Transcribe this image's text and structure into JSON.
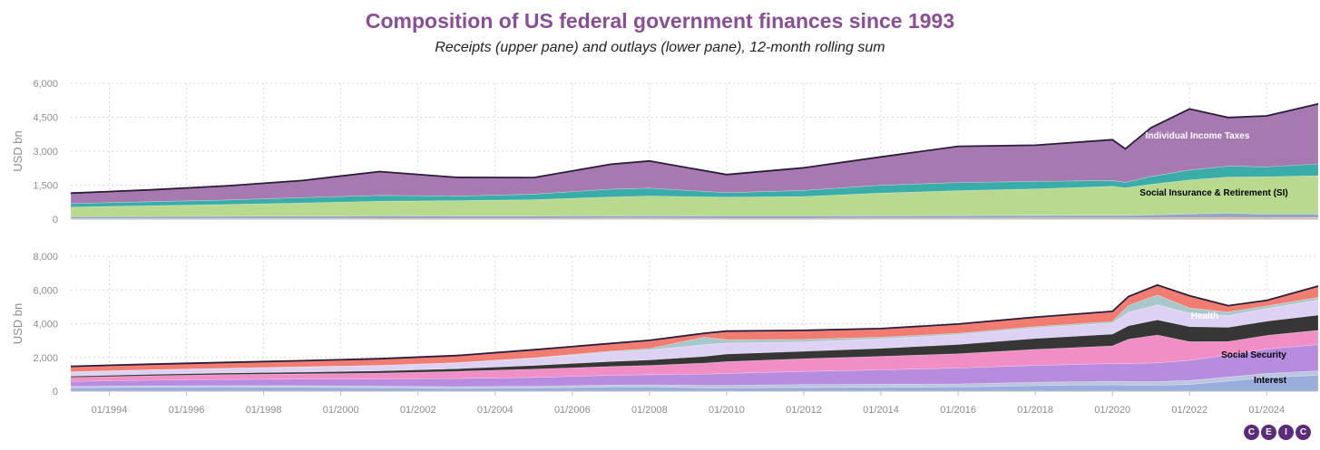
{
  "header": {
    "title": "Composition of US federal government finances since 1993",
    "subtitle": "Receipts (upper pane) and outlays (lower pane), 12-month rolling sum"
  },
  "logo": {
    "letters": [
      "C",
      "E",
      "I",
      "C"
    ]
  },
  "chart_data": [
    {
      "type": "area",
      "stacked": true,
      "ylabel": "USD bn",
      "ylim": [
        0,
        6000
      ],
      "yticks": [
        "0",
        "1,500",
        "3,000",
        "4,500",
        "6,000"
      ],
      "grid": true,
      "x": [
        "01/1993",
        "01/1995",
        "01/1997",
        "01/1999",
        "01/2001",
        "01/2003",
        "01/2005",
        "01/2007",
        "01/2008",
        "01/2010",
        "01/2012",
        "01/2014",
        "01/2016",
        "01/2018",
        "01/2020",
        "05/2020",
        "01/2021",
        "01/2022",
        "01/2023",
        "01/2024",
        "05/2025"
      ],
      "series": [
        {
          "color": "#f4b183",
          "values": [
            30,
            32,
            35,
            38,
            40,
            40,
            40,
            45,
            45,
            40,
            40,
            42,
            45,
            48,
            50,
            50,
            55,
            70,
            80,
            70,
            70
          ]
        },
        {
          "color": "#8fa6c8",
          "values": [
            80,
            85,
            90,
            95,
            100,
            95,
            95,
            100,
            105,
            100,
            100,
            105,
            110,
            115,
            120,
            115,
            130,
            160,
            180,
            150,
            150
          ]
        },
        {
          "color": "#b9d98f",
          "values": [
            420,
            470,
            520,
            580,
            650,
            680,
            720,
            830,
            870,
            830,
            860,
            1000,
            1100,
            1170,
            1280,
            1220,
            1350,
            1500,
            1600,
            1650,
            1700
          ]
        },
        {
          "color": "#3aada8",
          "values": [
            160,
            180,
            200,
            240,
            260,
            200,
            250,
            350,
            350,
            200,
            270,
            350,
            360,
            330,
            260,
            240,
            350,
            440,
            480,
            440,
            520
          ]
        },
        {
          "color": "#a779b1",
          "values": [
            460,
            520,
            620,
            750,
            1050,
            830,
            730,
            1100,
            1200,
            800,
            1000,
            1250,
            1600,
            1600,
            1800,
            1480,
            2150,
            2700,
            2150,
            2250,
            2650
          ]
        }
      ],
      "annotations": [
        {
          "text": "Individual Income Taxes",
          "color": "#ffffff"
        },
        {
          "text": "Social Insurance & Retirement (SI)",
          "color": "#000000"
        }
      ]
    },
    {
      "type": "area",
      "stacked": true,
      "ylabel": "USD bn",
      "ylim": [
        0,
        8000
      ],
      "yticks": [
        "0",
        "2,000",
        "4,000",
        "6,000",
        "8,000"
      ],
      "grid": true,
      "x_ticks": [
        "01/1994",
        "01/1996",
        "01/1998",
        "01/2000",
        "01/2002",
        "01/2004",
        "01/2006",
        "01/2008",
        "01/2010",
        "01/2012",
        "01/2014",
        "01/2016",
        "01/2018",
        "01/2020",
        "01/2022",
        "01/2024"
      ],
      "x": [
        "01/1993",
        "01/1995",
        "01/1997",
        "01/1999",
        "01/2001",
        "01/2003",
        "01/2005",
        "01/2007",
        "01/2008",
        "06/2009",
        "01/2010",
        "01/2012",
        "01/2014",
        "01/2016",
        "01/2018",
        "01/2020",
        "06/2020",
        "03/2021",
        "01/2022",
        "01/2023",
        "01/2024",
        "05/2025"
      ],
      "series": [
        {
          "color": "#9aaede",
          "values": [
            200,
            230,
            240,
            230,
            200,
            160,
            180,
            240,
            250,
            200,
            190,
            220,
            230,
            240,
            325,
            375,
            360,
            350,
            400,
            600,
            800,
            950
          ]
        },
        {
          "color": "#bcc6de",
          "values": [
            80,
            85,
            90,
            95,
            100,
            110,
            115,
            120,
            125,
            150,
            160,
            170,
            180,
            190,
            200,
            210,
            210,
            220,
            230,
            240,
            250,
            260
          ]
        },
        {
          "color": "#b78be0",
          "values": [
            300,
            330,
            360,
            390,
            420,
            480,
            520,
            580,
            600,
            660,
            700,
            780,
            850,
            940,
            1000,
            1050,
            1060,
            1110,
            1200,
            1300,
            1450,
            1550
          ]
        },
        {
          "color": "#f28ec6",
          "values": [
            230,
            260,
            290,
            310,
            350,
            420,
            490,
            520,
            550,
            650,
            700,
            750,
            800,
            850,
            950,
            1050,
            1450,
            1650,
            1100,
            800,
            800,
            850
          ]
        },
        {
          "color": "#363636",
          "values": [
            80,
            90,
            100,
            110,
            130,
            160,
            220,
            300,
            330,
            400,
            450,
            450,
            480,
            550,
            650,
            700,
            800,
            900,
            900,
            850,
            850,
            900
          ]
        },
        {
          "color": "#ded2f4",
          "values": [
            250,
            260,
            270,
            300,
            320,
            350,
            430,
            560,
            590,
            700,
            650,
            550,
            560,
            580,
            620,
            650,
            800,
            900,
            800,
            700,
            750,
            900
          ]
        },
        {
          "color": "#a8c7c8",
          "values": [
            10,
            10,
            10,
            10,
            10,
            10,
            20,
            60,
            80,
            440,
            200,
            150,
            100,
            80,
            80,
            100,
            400,
            580,
            300,
            200,
            150,
            150
          ]
        },
        {
          "color": "#f07c72",
          "values": [
            300,
            310,
            320,
            340,
            370,
            400,
            450,
            420,
            455,
            200,
            480,
            500,
            480,
            520,
            530,
            565,
            500,
            550,
            700,
            350,
            300,
            640
          ]
        },
        {
          "color": "#d9a0d9",
          "values": [
            20,
            20,
            20,
            20,
            20,
            20,
            30,
            30,
            30,
            30,
            30,
            30,
            30,
            30,
            30,
            30,
            30,
            30,
            30,
            30,
            30,
            30
          ]
        }
      ],
      "annotations": [
        {
          "text": "Health",
          "color": "#ffffff"
        },
        {
          "text": "Social Security",
          "color": "#000000"
        },
        {
          "text": "Interest",
          "color": "#000000"
        }
      ]
    }
  ]
}
